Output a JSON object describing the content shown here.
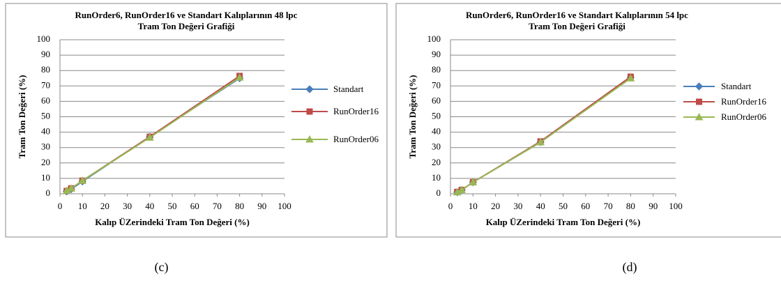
{
  "chart_data": [
    {
      "type": "line",
      "title": [
        "RunOrder6, RunOrder16 ve Standart Kalıplarının 48 lpc",
        "Tram Ton Değeri Grafiği"
      ],
      "x_label": "Kalıp ÜZerindeki Tram Ton Değeri (%)",
      "y_label": "Tram Ton Değeri (%)",
      "x": [
        3,
        5,
        10,
        40,
        80
      ],
      "xlim": [
        0,
        100
      ],
      "xticks": [
        0,
        10,
        20,
        30,
        40,
        50,
        60,
        70,
        80,
        90,
        100
      ],
      "ylim": [
        0,
        100
      ],
      "yticks": [
        0,
        10,
        20,
        30,
        40,
        50,
        60,
        70,
        80,
        90,
        100
      ],
      "grid": true,
      "legend": "right",
      "series": [
        {
          "name": "Standart",
          "color": "#4a7ebb",
          "marker": "diamond",
          "values": [
            1.5,
            3,
            8,
            37,
            75
          ]
        },
        {
          "name": "RunOrder16",
          "color": "#be4b48",
          "marker": "square",
          "values": [
            1.8,
            3.5,
            8.5,
            37,
            76.5
          ]
        },
        {
          "name": "RunOrder06",
          "color": "#98b954",
          "marker": "triangle",
          "values": [
            2,
            3.5,
            8.5,
            36.5,
            75.5
          ]
        }
      ],
      "caption": "(c)"
    },
    {
      "type": "line",
      "title": [
        "RunOrder6, RunOrder16 ve Standart Kalıplarının 54 lpc",
        "Tram Ton Değeri Grafiği"
      ],
      "x_label": "Kalıp ÜZerindeki Tram Ton Değeri (%)",
      "y_label": "Tram Ton Değeri (%)",
      "x": [
        3,
        5,
        10,
        40,
        80
      ],
      "xlim": [
        0,
        100
      ],
      "xticks": [
        0,
        10,
        20,
        30,
        40,
        50,
        60,
        70,
        80,
        90,
        100
      ],
      "ylim": [
        0,
        100
      ],
      "yticks": [
        0,
        10,
        20,
        30,
        40,
        50,
        60,
        70,
        80,
        90,
        100
      ],
      "grid": true,
      "legend": "right",
      "series": [
        {
          "name": "Standart",
          "color": "#4a7ebb",
          "marker": "diamond",
          "values": [
            1,
            2.5,
            7.5,
            33.5,
            75.5
          ]
        },
        {
          "name": "RunOrder16",
          "color": "#be4b48",
          "marker": "square",
          "values": [
            1.2,
            2.5,
            7.5,
            34,
            76
          ]
        },
        {
          "name": "RunOrder06",
          "color": "#98b954",
          "marker": "triangle",
          "values": [
            1,
            2.5,
            7.5,
            33.5,
            75
          ]
        }
      ],
      "caption": "(d)"
    }
  ]
}
